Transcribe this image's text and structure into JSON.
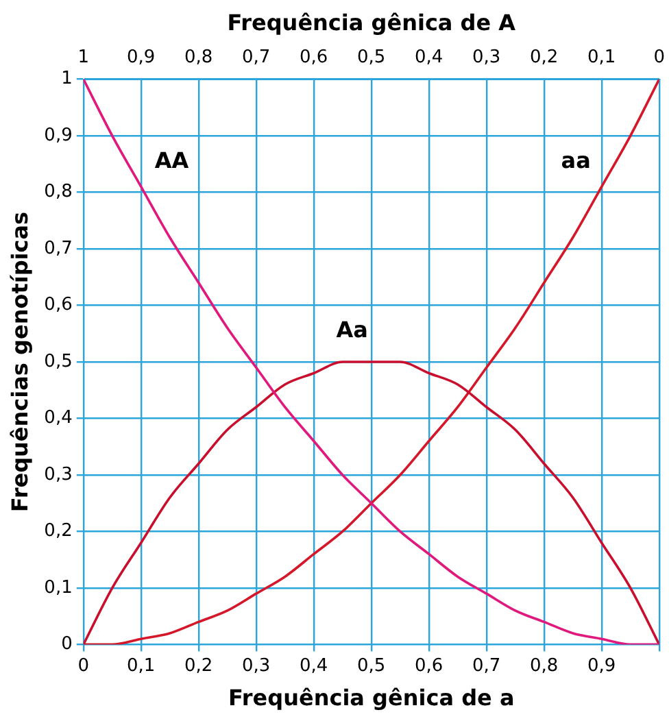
{
  "chart_data": {
    "type": "line",
    "xlabel": "Frequência gênica de a",
    "x2label": "Frequência gênica de A",
    "ylabel": "Frequências genotípicas",
    "x": [
      0,
      0.05,
      0.1,
      0.15,
      0.2,
      0.25,
      0.3,
      0.35,
      0.4,
      0.45,
      0.5,
      0.55,
      0.6,
      0.65,
      0.7,
      0.75,
      0.8,
      0.85,
      0.9,
      0.95,
      1
    ],
    "series": [
      {
        "name": "AA",
        "color": "#e0197d",
        "values": [
          1,
          0.9,
          0.81,
          0.72,
          0.64,
          0.56,
          0.49,
          0.42,
          0.36,
          0.3,
          0.25,
          0.2,
          0.16,
          0.12,
          0.09,
          0.06,
          0.04,
          0.02,
          0.01,
          0,
          0
        ]
      },
      {
        "name": "Aa",
        "color": "#c8102e",
        "values": [
          0,
          0.1,
          0.18,
          0.26,
          0.32,
          0.38,
          0.42,
          0.46,
          0.48,
          0.5,
          0.5,
          0.5,
          0.48,
          0.46,
          0.42,
          0.38,
          0.32,
          0.26,
          0.18,
          0.1,
          0
        ]
      },
      {
        "name": "aa",
        "color": "#d4182a",
        "values": [
          0,
          0,
          0.01,
          0.02,
          0.04,
          0.06,
          0.09,
          0.12,
          0.16,
          0.2,
          0.25,
          0.3,
          0.36,
          0.42,
          0.49,
          0.56,
          0.64,
          0.72,
          0.81,
          0.9,
          1
        ]
      }
    ],
    "xlim": [
      0,
      1
    ],
    "x2lim": [
      1,
      0
    ],
    "ylim": [
      0,
      1
    ],
    "xticks": [
      0,
      {
        "value": 0.1,
        "label": "0,1"
      },
      {
        "value": 0.2,
        "label": "0,2"
      },
      {
        "value": 0.3,
        "label": "0,3"
      },
      {
        "value": 0.4,
        "label": "0,4"
      },
      {
        "value": 0.5,
        "label": "0,5"
      },
      {
        "value": 0.6,
        "label": "0,6"
      },
      {
        "value": 0.7,
        "label": "0,7"
      },
      {
        "value": 0.8,
        "label": "0,8"
      },
      {
        "value": 0.9,
        "label": "0,9"
      },
      {
        "value": 1,
        "label": null
      }
    ],
    "x2ticks": [
      1,
      {
        "value": 0.9,
        "label": "0,9"
      },
      {
        "value": 0.8,
        "label": "0,8"
      },
      {
        "value": 0.7,
        "label": "0,7"
      },
      {
        "value": 0.6,
        "label": "0,6"
      },
      {
        "value": 0.5,
        "label": "0,5"
      },
      {
        "value": 0.4,
        "label": "0,4"
      },
      {
        "value": 0.3,
        "label": "0,3"
      },
      {
        "value": 0.2,
        "label": "0,2"
      },
      {
        "value": 0.1,
        "label": "0,1"
      },
      0
    ],
    "yticks": [
      0,
      {
        "value": 0.1,
        "label": "0,1"
      },
      {
        "value": 0.2,
        "label": "0,2"
      },
      {
        "value": 0.3,
        "label": "0,3"
      },
      {
        "value": 0.4,
        "label": "0,4"
      },
      {
        "value": 0.5,
        "label": "0,5"
      },
      {
        "value": 0.6,
        "label": "0,6"
      },
      {
        "value": 0.7,
        "label": "0,7"
      },
      {
        "value": 0.8,
        "label": "0,8"
      },
      {
        "value": 0.9,
        "label": "0,9"
      },
      1
    ],
    "grid": true,
    "marker": "none",
    "line_style": "solid",
    "legend": false
  }
}
